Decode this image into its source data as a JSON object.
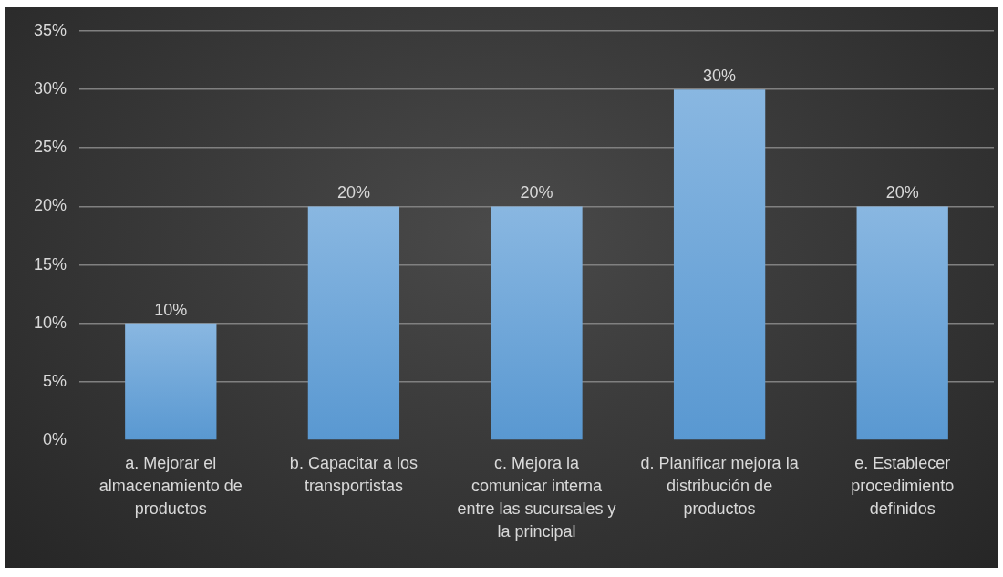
{
  "chart_data": {
    "type": "bar",
    "categories": [
      "a. Mejorar el almacenamiento de productos",
      "b. Capacitar a los transportistas",
      "c. Mejora la comunicar interna entre las sucursales y la principal",
      "d. Planificar mejora la distribución de productos",
      "e. Establecer procedimiento definidos"
    ],
    "values": [
      10,
      20,
      20,
      30,
      20
    ],
    "value_labels": [
      "10%",
      "20%",
      "20%",
      "30%",
      "20%"
    ],
    "color": "#5b9bd5",
    "ylim": [
      0,
      35
    ],
    "yticks": [
      {
        "value": 0,
        "label": "0%"
      },
      {
        "value": 5,
        "label": "5%"
      },
      {
        "value": 10,
        "label": "10%"
      },
      {
        "value": 15,
        "label": "15%"
      },
      {
        "value": 20,
        "label": "20%"
      },
      {
        "value": 25,
        "label": "25%"
      },
      {
        "value": 30,
        "label": "30%"
      },
      {
        "value": 35,
        "label": "35%"
      }
    ],
    "grid": "y"
  }
}
